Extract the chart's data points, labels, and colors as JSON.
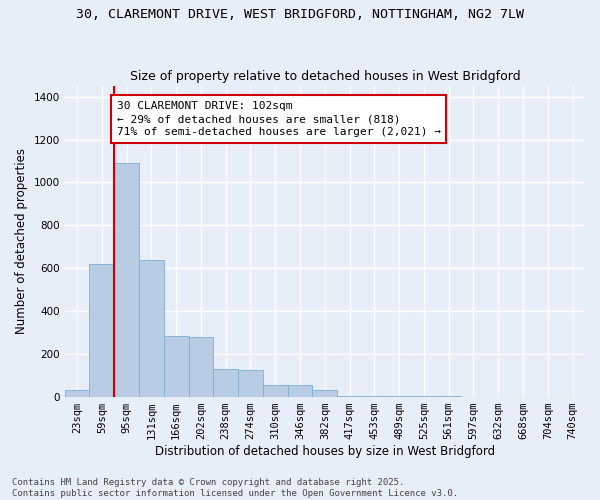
{
  "title_line1": "30, CLAREMONT DRIVE, WEST BRIDGFORD, NOTTINGHAM, NG2 7LW",
  "title_line2": "Size of property relative to detached houses in West Bridgford",
  "xlabel": "Distribution of detached houses by size in West Bridgford",
  "ylabel": "Number of detached properties",
  "bin_labels": [
    "23sqm",
    "59sqm",
    "95sqm",
    "131sqm",
    "166sqm",
    "202sqm",
    "238sqm",
    "274sqm",
    "310sqm",
    "346sqm",
    "382sqm",
    "417sqm",
    "453sqm",
    "489sqm",
    "525sqm",
    "561sqm",
    "597sqm",
    "632sqm",
    "668sqm",
    "704sqm",
    "740sqm"
  ],
  "bar_values": [
    30,
    620,
    1090,
    640,
    285,
    280,
    130,
    125,
    55,
    55,
    30,
    5,
    3,
    2,
    1,
    1,
    0,
    0,
    0,
    0,
    0
  ],
  "bar_color": "#b8cce4",
  "bar_edgecolor": "#7bafd4",
  "background_color": "#e8eef7",
  "grid_color": "#ffffff",
  "property_bin_index": 2,
  "annotation_text": "30 CLAREMONT DRIVE: 102sqm\n← 29% of detached houses are smaller (818)\n71% of semi-detached houses are larger (2,021) →",
  "annotation_box_color": "#ffffff",
  "annotation_box_edgecolor": "#cc0000",
  "redline_color": "#cc0000",
  "ylim": [
    0,
    1450
  ],
  "yticks": [
    0,
    200,
    400,
    600,
    800,
    1000,
    1200,
    1400
  ],
  "footer_line1": "Contains HM Land Registry data © Crown copyright and database right 2025.",
  "footer_line2": "Contains public sector information licensed under the Open Government Licence v3.0.",
  "title_fontsize": 9.5,
  "subtitle_fontsize": 9,
  "axis_label_fontsize": 8.5,
  "tick_fontsize": 7.5,
  "annotation_fontsize": 8,
  "footer_fontsize": 6.5
}
